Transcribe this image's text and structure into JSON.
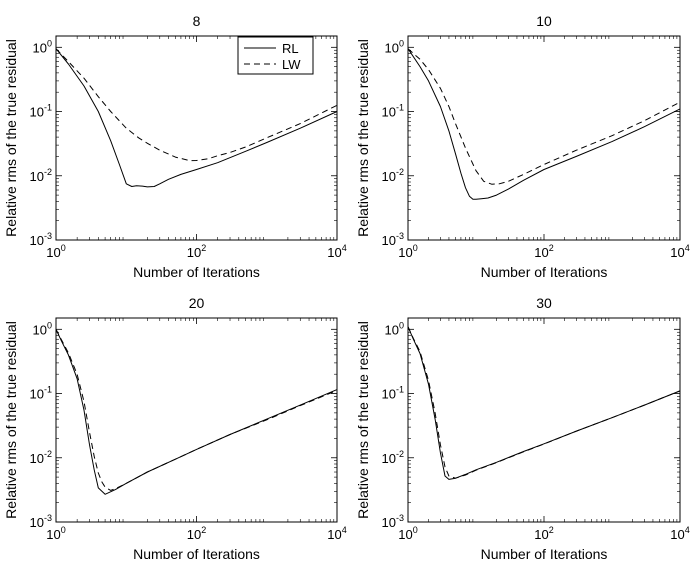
{
  "chart_data": [
    {
      "type": "line",
      "title": "8",
      "xlabel": "Number of Iterations",
      "ylabel": "Relative rms of the true residual",
      "xscale": "log",
      "yscale": "log",
      "xlim": [
        1,
        10000
      ],
      "ylim": [
        0.001,
        1.5
      ],
      "x_ticks": [
        1,
        100,
        10000
      ],
      "y_ticks": [
        0.001,
        0.01,
        0.1,
        1
      ],
      "legend": {
        "placement": "top-right",
        "entries": [
          "RL",
          "LW"
        ]
      },
      "series": [
        {
          "name": "RL",
          "style": "solid",
          "x": [
            1,
            1.5,
            2.5,
            4,
            6,
            8,
            10,
            12,
            14,
            17,
            20,
            25,
            30,
            40,
            60,
            100,
            200,
            500,
            1000,
            3000,
            10000
          ],
          "y": [
            0.95,
            0.55,
            0.25,
            0.1,
            0.035,
            0.015,
            0.0075,
            0.0068,
            0.007,
            0.0069,
            0.0067,
            0.0068,
            0.0075,
            0.0088,
            0.0105,
            0.0125,
            0.016,
            0.024,
            0.033,
            0.055,
            0.1
          ]
        },
        {
          "name": "LW",
          "style": "dashed",
          "x": [
            1,
            1.5,
            2.5,
            4,
            6,
            10,
            15,
            20,
            30,
            50,
            80,
            100,
            150,
            200,
            300,
            500,
            1000,
            3000,
            10000
          ],
          "y": [
            0.95,
            0.6,
            0.33,
            0.17,
            0.1,
            0.055,
            0.039,
            0.032,
            0.025,
            0.0195,
            0.0172,
            0.0173,
            0.0185,
            0.0205,
            0.023,
            0.028,
            0.039,
            0.065,
            0.125
          ]
        }
      ]
    },
    {
      "type": "line",
      "title": "10",
      "xlabel": "Number of Iterations",
      "ylabel": "Relative rms of the true residual",
      "xscale": "log",
      "yscale": "log",
      "xlim": [
        1,
        10000
      ],
      "ylim": [
        0.001,
        1.5
      ],
      "x_ticks": [
        1,
        100,
        10000
      ],
      "y_ticks": [
        0.001,
        0.01,
        0.1,
        1
      ],
      "series": [
        {
          "name": "RL",
          "style": "solid",
          "x": [
            1,
            1.5,
            2,
            3,
            4,
            5,
            6,
            7,
            8,
            9,
            10,
            12,
            15,
            20,
            30,
            50,
            100,
            300,
            1000,
            3000,
            10000
          ],
          "y": [
            0.95,
            0.5,
            0.3,
            0.12,
            0.05,
            0.022,
            0.011,
            0.0065,
            0.0048,
            0.0043,
            0.0043,
            0.0044,
            0.0045,
            0.005,
            0.0062,
            0.0085,
            0.0125,
            0.02,
            0.034,
            0.058,
            0.11
          ]
        },
        {
          "name": "LW",
          "style": "dashed",
          "x": [
            1,
            1.5,
            2,
            3,
            4,
            5,
            7,
            10,
            13,
            17,
            22,
            30,
            50,
            100,
            300,
            1000,
            3000,
            10000
          ],
          "y": [
            0.95,
            0.65,
            0.45,
            0.23,
            0.12,
            0.065,
            0.027,
            0.012,
            0.0082,
            0.0074,
            0.0075,
            0.0082,
            0.0105,
            0.015,
            0.025,
            0.042,
            0.072,
            0.14
          ]
        }
      ]
    },
    {
      "type": "line",
      "title": "20",
      "xlabel": "Number of Iterations",
      "ylabel": "Relative rms of the true residual",
      "xscale": "log",
      "yscale": "log",
      "xlim": [
        1,
        10000
      ],
      "ylim": [
        0.001,
        1.5
      ],
      "x_ticks": [
        1,
        100,
        10000
      ],
      "y_ticks": [
        0.001,
        0.01,
        0.1,
        1
      ],
      "series": [
        {
          "name": "RL",
          "style": "solid",
          "x": [
            1,
            1.2,
            1.5,
            2,
            2.5,
            3,
            3.5,
            4,
            5,
            7,
            10,
            20,
            50,
            100,
            300,
            1000,
            3000,
            10000
          ],
          "y": [
            1.0,
            0.65,
            0.4,
            0.17,
            0.055,
            0.016,
            0.0065,
            0.0034,
            0.0027,
            0.0032,
            0.004,
            0.006,
            0.0095,
            0.0135,
            0.023,
            0.04,
            0.066,
            0.115
          ]
        },
        {
          "name": "LW",
          "style": "dashed",
          "x": [
            1,
            1.2,
            1.5,
            2,
            2.5,
            3,
            3.5,
            4,
            4.5,
            5,
            6,
            7,
            10,
            20,
            50,
            100,
            300,
            1000,
            3000,
            10000
          ],
          "y": [
            1.0,
            0.68,
            0.43,
            0.2,
            0.075,
            0.025,
            0.0105,
            0.0058,
            0.0042,
            0.0035,
            0.0031,
            0.0033,
            0.004,
            0.006,
            0.0095,
            0.0135,
            0.023,
            0.039,
            0.065,
            0.112
          ]
        }
      ]
    },
    {
      "type": "line",
      "title": "30",
      "xlabel": "Number of Iterations",
      "ylabel": "Relative rms of the true residual",
      "xscale": "log",
      "yscale": "log",
      "xlim": [
        1,
        10000
      ],
      "ylim": [
        0.001,
        1.5
      ],
      "x_ticks": [
        1,
        100,
        10000
      ],
      "y_ticks": [
        0.001,
        0.01,
        0.1,
        1
      ],
      "series": [
        {
          "name": "RL",
          "style": "solid",
          "x": [
            1,
            1.2,
            1.5,
            2,
            2.5,
            3,
            3.5,
            4,
            5,
            7,
            10,
            20,
            50,
            100,
            300,
            1000,
            3000,
            10000
          ],
          "y": [
            1.1,
            0.7,
            0.42,
            0.14,
            0.04,
            0.012,
            0.0052,
            0.0046,
            0.0048,
            0.0055,
            0.0065,
            0.0085,
            0.0125,
            0.0165,
            0.026,
            0.042,
            0.066,
            0.11
          ]
        },
        {
          "name": "LW",
          "style": "dashed",
          "x": [
            1,
            1.2,
            1.5,
            2,
            2.5,
            3,
            3.5,
            4,
            5,
            7,
            10,
            20,
            50,
            100,
            300,
            1000,
            3000,
            10000
          ],
          "y": [
            1.1,
            0.72,
            0.45,
            0.16,
            0.05,
            0.016,
            0.0072,
            0.0052,
            0.0048,
            0.0054,
            0.0064,
            0.0084,
            0.0124,
            0.0164,
            0.026,
            0.042,
            0.066,
            0.11
          ]
        }
      ]
    }
  ]
}
